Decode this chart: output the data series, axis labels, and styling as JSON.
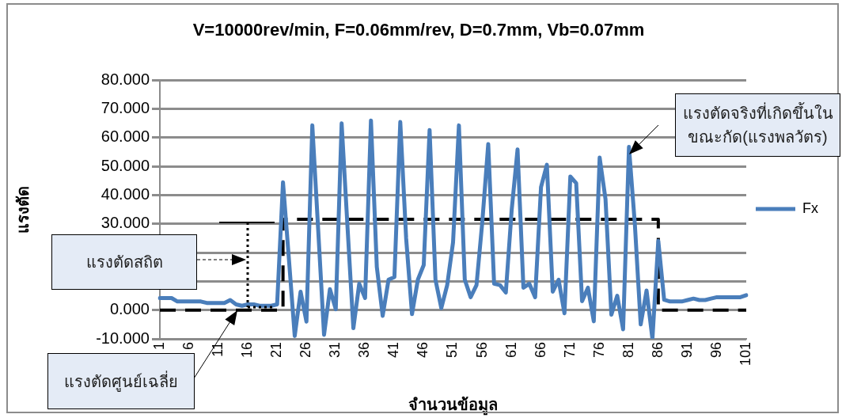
{
  "chart_data": {
    "type": "line",
    "title": "V=10000rev/min, F=0.06mm/rev, D=0.7mm, Vb=0.07mm",
    "xlabel": "จำนวนข้อมูล",
    "ylabel": "แรงตัด",
    "categories": [
      "1",
      null,
      null,
      null,
      null,
      "6",
      null,
      null,
      null,
      null,
      "11",
      null,
      null,
      null,
      null,
      "16",
      null,
      null,
      null,
      null,
      "21",
      null,
      null,
      null,
      null,
      "26",
      null,
      null,
      null,
      null,
      "31",
      null,
      null,
      null,
      null,
      "36",
      null,
      null,
      null,
      null,
      "41",
      null,
      null,
      null,
      null,
      "46",
      null,
      null,
      null,
      null,
      "51",
      null,
      null,
      null,
      null,
      "56",
      null,
      null,
      null,
      null,
      "61",
      null,
      null,
      null,
      null,
      "66",
      null,
      null,
      null,
      null,
      "71",
      null,
      null,
      null,
      null,
      "76",
      null,
      null,
      null,
      null,
      "81",
      null,
      null,
      null,
      null,
      "86",
      null,
      null,
      null,
      null,
      "91",
      null,
      null,
      null,
      null,
      "96",
      null,
      null,
      null,
      null,
      "101"
    ],
    "series": [
      {
        "name": "Fx",
        "color": "#4a7ebb",
        "values": [
          4.2,
          4.2,
          4.2,
          3.0,
          3.0,
          3.0,
          3.0,
          3.0,
          2.5,
          2.5,
          2.5,
          2.5,
          3.5,
          2.0,
          1.5,
          2.0,
          2.0,
          1.5,
          1.5,
          1.5,
          2.0,
          44.5,
          18,
          -9,
          6.4,
          -4,
          64.3,
          28,
          -8.6,
          7.3,
          0.3,
          65,
          29,
          -6.3,
          9.2,
          4.2,
          66,
          15,
          -2,
          10.6,
          11.5,
          65.5,
          25,
          -1.4,
          10.6,
          15.7,
          62.7,
          10.6,
          0.7,
          8.7,
          23.6,
          64.3,
          10.6,
          4.5,
          8.7,
          31,
          57.8,
          9.2,
          8.7,
          6.1,
          34.9,
          55.9,
          7.8,
          9.2,
          4.5,
          42.8,
          50.6,
          6.4,
          10.6,
          -1.1,
          46.5,
          44.2,
          3.1,
          7.8,
          -3.9,
          53.1,
          38.6,
          -1.6,
          5,
          -6.7,
          56.8,
          30,
          -5,
          6.8,
          -10,
          24.1,
          3.6,
          3.0,
          3.0,
          3.0,
          3.5,
          4.0,
          3.5,
          3.5,
          4.0,
          4.5,
          4.5,
          4.5,
          4.5,
          4.5,
          5.2
        ]
      },
      {
        "type": "step",
        "color": "#000000",
        "line_style": "dashed",
        "values": [
          0,
          0,
          0,
          0,
          0,
          0,
          0,
          0,
          0,
          0,
          0,
          0,
          0,
          0,
          0,
          0,
          0,
          0,
          0,
          0,
          0,
          31.6,
          31.6,
          31.6,
          31.6,
          31.6,
          31.6,
          31.6,
          31.6,
          31.6,
          31.6,
          31.6,
          31.6,
          31.6,
          31.6,
          31.6,
          31.6,
          31.6,
          31.6,
          31.6,
          31.6,
          31.6,
          31.6,
          31.6,
          31.6,
          31.6,
          31.6,
          31.6,
          31.6,
          31.6,
          31.6,
          31.6,
          31.6,
          31.6,
          31.6,
          31.6,
          31.6,
          31.6,
          31.6,
          31.6,
          31.6,
          31.6,
          31.6,
          31.6,
          31.6,
          31.6,
          31.6,
          31.6,
          31.6,
          31.6,
          31.6,
          31.6,
          31.6,
          31.6,
          31.6,
          31.6,
          31.6,
          31.6,
          31.6,
          31.6,
          31.6,
          31.6,
          31.6,
          31.6,
          31.6,
          0,
          0,
          0,
          0,
          0,
          0,
          0,
          0,
          0,
          0,
          0,
          0,
          0,
          0,
          0,
          0
        ]
      }
    ],
    "ylim": [
      -10,
      80
    ],
    "yticks": [
      {
        "value": -10,
        "label": "-10.000"
      },
      {
        "value": 0,
        "label": "0.000"
      },
      {
        "value": 10,
        "label": null
      },
      {
        "value": 20,
        "label": null
      },
      {
        "value": 30,
        "label": "30.000"
      },
      {
        "value": 40,
        "label": "40.000"
      },
      {
        "value": 50,
        "label": "50.000"
      },
      {
        "value": 60,
        "label": "60.000"
      },
      {
        "value": 70,
        "label": "70.000"
      },
      {
        "value": 80,
        "label": "80.000"
      }
    ],
    "grid": "y",
    "legend": "right",
    "marker": "none",
    "annotations": [
      "แรงตัดจริงที่เกิดขึ้นในขณะกัด(แรงพลวัตร)",
      "แรงตัดสถิต",
      "แรงตัดศูนย์เฉลี่ย"
    ]
  }
}
